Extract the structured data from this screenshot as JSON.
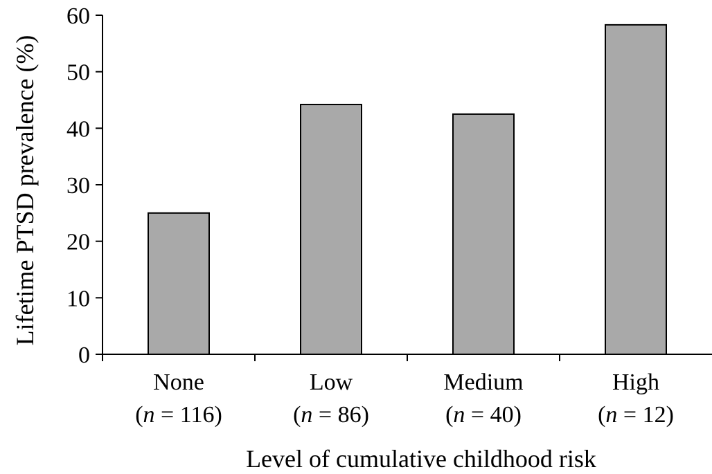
{
  "chart_data": {
    "type": "bar",
    "categories": [
      "None",
      "Low",
      "Medium",
      "High"
    ],
    "category_sublabels": [
      {
        "prefix": "(",
        "italic": "n",
        "suffix": " = 116)"
      },
      {
        "prefix": "(",
        "italic": "n",
        "suffix": " = 86)"
      },
      {
        "prefix": "(",
        "italic": "n",
        "suffix": " = 40)"
      },
      {
        "prefix": "(",
        "italic": "n",
        "suffix": " = 12)"
      }
    ],
    "values": [
      25,
      44.2,
      42.5,
      58.3
    ],
    "title": "",
    "xlabel": "Level of cumulative childhood risk",
    "ylabel": "Lifetime PTSD prevalence (%)",
    "ylim": [
      0,
      60
    ],
    "yticks": [
      0,
      10,
      20,
      30,
      40,
      50,
      60
    ],
    "grid": false,
    "bar_color": "#a9a9a9"
  }
}
